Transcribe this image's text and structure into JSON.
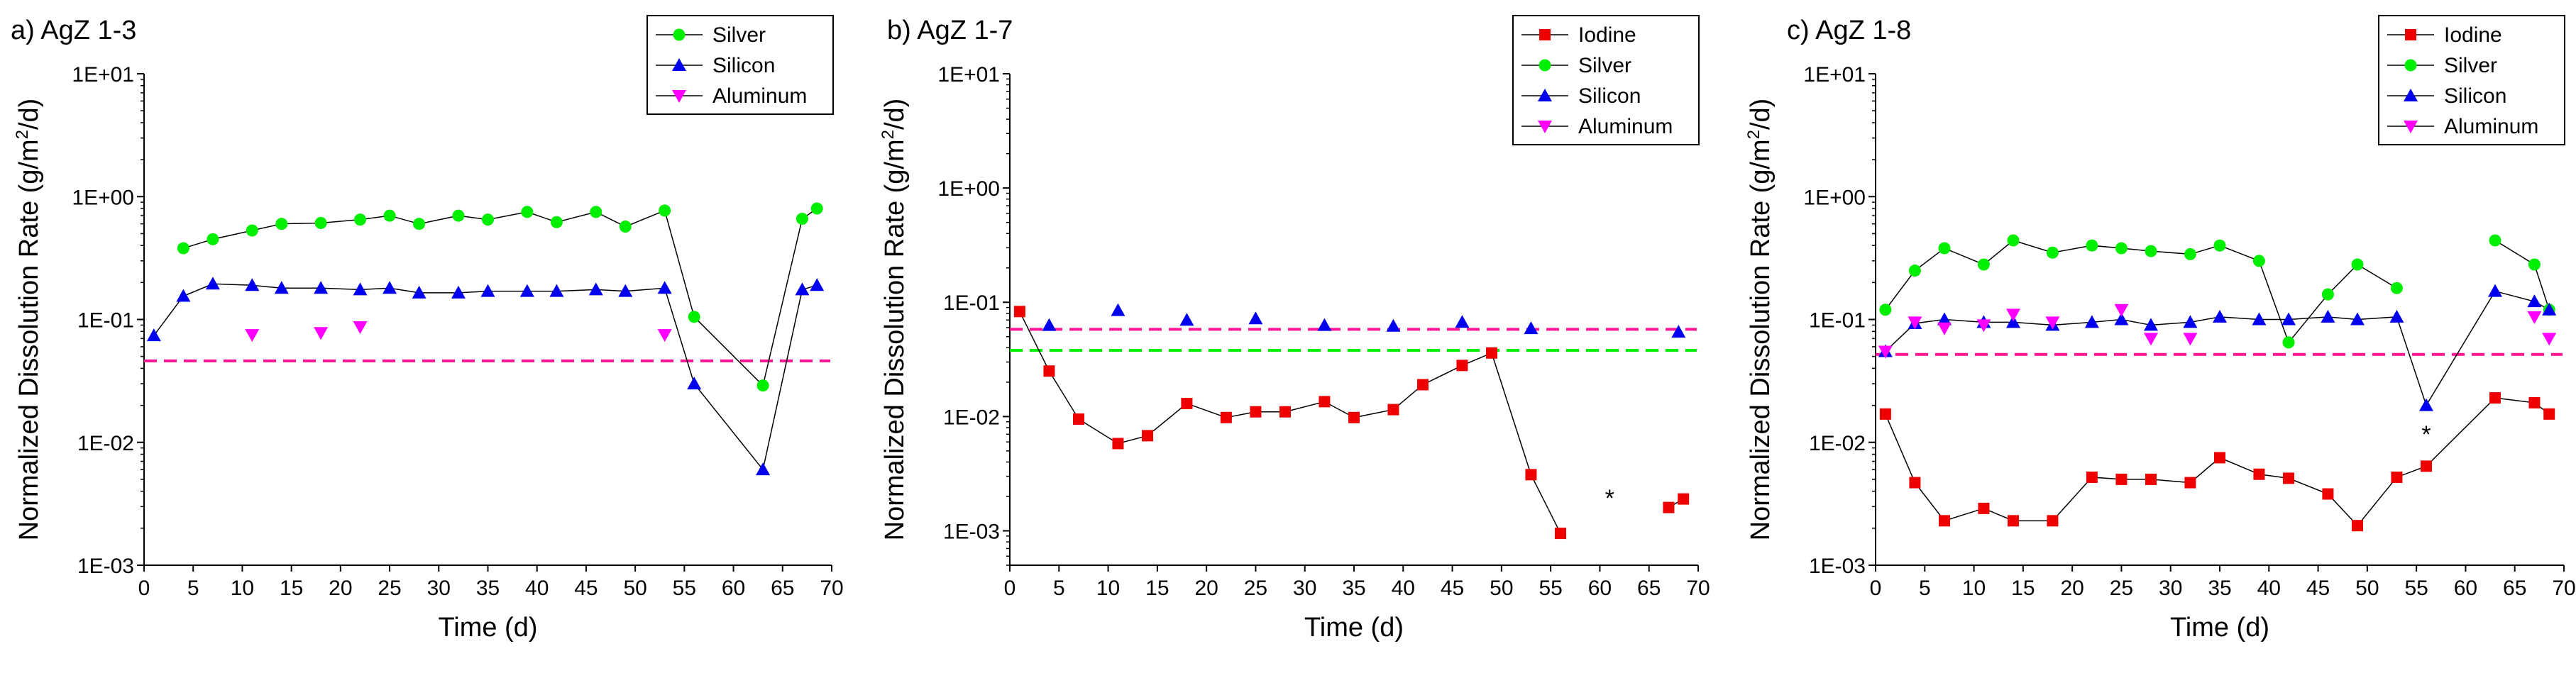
{
  "chart_data": [
    {
      "type": "scatter",
      "title": "a) AgZ 1-3",
      "xlabel": "Time (d)",
      "ylabel_prefix": "Normalized Dissolution Rate (g/m",
      "ylabel_sup": "2",
      "ylabel_suffix": "/d)",
      "xlim": [
        0,
        70
      ],
      "xticks": [
        0,
        5,
        10,
        15,
        20,
        25,
        30,
        35,
        40,
        45,
        50,
        55,
        60,
        65,
        70
      ],
      "ylim": [
        0.001,
        10
      ],
      "yscale": "log",
      "yticks": [
        0.001,
        0.01,
        0.1,
        1,
        10
      ],
      "ytick_labels": [
        "1E-03",
        "1E-02",
        "1E-01",
        "1E+00",
        "1E+01"
      ],
      "legend": [
        "Silver",
        "Silicon",
        "Aluminum"
      ],
      "series": [
        {
          "name": "Silver",
          "color": "#00ee00",
          "marker": "circle",
          "segments": [
            [
              [
                4,
                0.38
              ],
              [
                7,
                0.45
              ],
              [
                11,
                0.53
              ],
              [
                14,
                0.6
              ],
              [
                18,
                0.61
              ],
              [
                22,
                0.65
              ],
              [
                25,
                0.7
              ],
              [
                28,
                0.6
              ],
              [
                32,
                0.7
              ],
              [
                35,
                0.65
              ],
              [
                39,
                0.75
              ],
              [
                42,
                0.62
              ],
              [
                46,
                0.75
              ],
              [
                49,
                0.57
              ],
              [
                53,
                0.77
              ],
              [
                56,
                0.105
              ],
              [
                63,
                0.029
              ],
              [
                67,
                0.66
              ],
              [
                68.5,
                0.8
              ]
            ]
          ]
        },
        {
          "name": "Silicon",
          "color": "#0000ee",
          "marker": "triangle-up",
          "segments": [
            [
              [
                1,
                0.074
              ],
              [
                4,
                0.155
              ],
              [
                7,
                0.195
              ],
              [
                11,
                0.19
              ],
              [
                14,
                0.18
              ],
              [
                18,
                0.18
              ],
              [
                22,
                0.175
              ],
              [
                25,
                0.18
              ],
              [
                28,
                0.165
              ],
              [
                32,
                0.165
              ],
              [
                35,
                0.17
              ],
              [
                39,
                0.17
              ],
              [
                42,
                0.17
              ],
              [
                46,
                0.175
              ],
              [
                49,
                0.17
              ],
              [
                53,
                0.18
              ],
              [
                56,
                0.03
              ],
              [
                63,
                0.006
              ],
              [
                67,
                0.175
              ],
              [
                68.5,
                0.19
              ]
            ]
          ]
        },
        {
          "name": "Aluminum",
          "color": "#ff00ff",
          "marker": "triangle-down",
          "segments": [
            [
              [
                11,
                0.075
              ]
            ],
            [
              [
                18,
                0.078
              ]
            ],
            [
              [
                22,
                0.087
              ]
            ],
            [
              [
                53,
                0.075
              ]
            ]
          ]
        }
      ],
      "reference_lines": [
        {
          "y": 0.046,
          "color": "#ff1493"
        }
      ],
      "annotations": []
    },
    {
      "type": "scatter",
      "title": "b) AgZ 1-7",
      "xlabel": "Time (d)",
      "ylabel_prefix": "Normalized Dissolution Rate (g/m",
      "ylabel_sup": "2",
      "ylabel_suffix": "/d)",
      "xlim": [
        0,
        70
      ],
      "xticks": [
        0,
        5,
        10,
        15,
        20,
        25,
        30,
        35,
        40,
        45,
        50,
        55,
        60,
        65,
        70
      ],
      "ylim": [
        0.0005,
        10
      ],
      "yscale": "log",
      "yticks": [
        0.001,
        0.01,
        0.1,
        1,
        10
      ],
      "ytick_labels": [
        "1E-03",
        "1E-02",
        "1E-01",
        "1E+00",
        "1E+01"
      ],
      "legend": [
        "Iodine",
        "Silver",
        "Silicon",
        "Aluminum"
      ],
      "series": [
        {
          "name": "Iodine",
          "color": "#ee0000",
          "marker": "square",
          "segments": [
            [
              [
                1,
                0.083
              ],
              [
                4,
                0.025
              ],
              [
                7,
                0.0095
              ],
              [
                11,
                0.0058
              ],
              [
                14,
                0.0068
              ],
              [
                18,
                0.013
              ],
              [
                22,
                0.0098
              ],
              [
                25,
                0.011
              ],
              [
                28,
                0.011
              ],
              [
                32,
                0.0135
              ],
              [
                35,
                0.0098
              ],
              [
                39,
                0.0115
              ],
              [
                42,
                0.019
              ],
              [
                46,
                0.028
              ],
              [
                49,
                0.036
              ],
              [
                53,
                0.0031
              ],
              [
                56,
                0.00095
              ]
            ],
            [
              [
                67,
                0.0016
              ],
              [
                68.5,
                0.0019
              ]
            ]
          ]
        },
        {
          "name": "Silver",
          "color": "#00ee00",
          "marker": "circle",
          "segments": []
        },
        {
          "name": "Silicon",
          "color": "#0000ee",
          "marker": "triangle-up",
          "segments": [
            [
              [
                4,
                0.063
              ]
            ],
            [
              [
                11,
                0.085
              ]
            ],
            [
              [
                18,
                0.07
              ]
            ],
            [
              [
                25,
                0.072
              ]
            ],
            [
              [
                32,
                0.063
              ]
            ],
            [
              [
                39,
                0.062
              ]
            ],
            [
              [
                46,
                0.067
              ]
            ],
            [
              [
                53,
                0.059
              ]
            ],
            [
              [
                68,
                0.055
              ]
            ]
          ]
        },
        {
          "name": "Aluminum",
          "color": "#ff00ff",
          "marker": "triangle-down",
          "segments": []
        }
      ],
      "reference_lines": [
        {
          "y": 0.058,
          "color": "#ff1493"
        },
        {
          "y": 0.038,
          "color": "#00ee00"
        }
      ],
      "annotations": [
        {
          "text": "*",
          "x": 61,
          "y": 0.002
        }
      ]
    },
    {
      "type": "scatter",
      "title": "c) AgZ 1-8",
      "xlabel": "Time (d)",
      "ylabel_prefix": "Normalized Dissolution Rate (g/m",
      "ylabel_sup": "2",
      "ylabel_suffix": "/d)",
      "xlim": [
        0,
        70
      ],
      "xticks": [
        0,
        5,
        10,
        15,
        20,
        25,
        30,
        35,
        40,
        45,
        50,
        55,
        60,
        65,
        70
      ],
      "ylim": [
        0.001,
        10
      ],
      "yscale": "log",
      "yticks": [
        0.001,
        0.01,
        0.1,
        1,
        10
      ],
      "ytick_labels": [
        "1E-03",
        "1E-02",
        "1E-01",
        "1E+00",
        "1E+01"
      ],
      "legend": [
        "Iodine",
        "Silver",
        "Silicon",
        "Aluminum"
      ],
      "series": [
        {
          "name": "Iodine",
          "color": "#ee0000",
          "marker": "square",
          "segments": [
            [
              [
                1,
                0.017
              ],
              [
                4,
                0.0047
              ],
              [
                7,
                0.0023
              ],
              [
                11,
                0.0029
              ],
              [
                14,
                0.0023
              ],
              [
                18,
                0.0023
              ],
              [
                22,
                0.0052
              ],
              [
                25,
                0.005
              ],
              [
                28,
                0.005
              ],
              [
                32,
                0.0047
              ],
              [
                35,
                0.0075
              ],
              [
                39,
                0.0055
              ],
              [
                42,
                0.0051
              ],
              [
                46,
                0.0038
              ],
              [
                49,
                0.0021
              ],
              [
                53,
                0.0052
              ],
              [
                56,
                0.0064
              ],
              [
                63,
                0.023
              ],
              [
                67,
                0.021
              ],
              [
                68.5,
                0.017
              ]
            ]
          ]
        },
        {
          "name": "Silver",
          "color": "#00ee00",
          "marker": "circle",
          "segments": [
            [
              [
                1,
                0.12
              ],
              [
                4,
                0.25
              ],
              [
                7,
                0.38
              ],
              [
                11,
                0.28
              ],
              [
                14,
                0.44
              ],
              [
                18,
                0.35
              ],
              [
                22,
                0.4
              ],
              [
                25,
                0.38
              ],
              [
                28,
                0.36
              ],
              [
                32,
                0.34
              ],
              [
                35,
                0.4
              ],
              [
                39,
                0.3
              ],
              [
                42,
                0.065
              ],
              [
                46,
                0.16
              ],
              [
                49,
                0.28
              ],
              [
                53,
                0.18
              ]
            ],
            [
              [
                63,
                0.44
              ],
              [
                67,
                0.28
              ],
              [
                68.5,
                0.12
              ]
            ]
          ]
        },
        {
          "name": "Silicon",
          "color": "#0000ee",
          "marker": "triangle-up",
          "segments": [
            [
              [
                1,
                0.055
              ],
              [
                4,
                0.093
              ],
              [
                7,
                0.1
              ],
              [
                11,
                0.095
              ],
              [
                14,
                0.095
              ],
              [
                18,
                0.09
              ],
              [
                22,
                0.095
              ],
              [
                25,
                0.1
              ],
              [
                28,
                0.09
              ],
              [
                32,
                0.095
              ],
              [
                35,
                0.105
              ],
              [
                39,
                0.1
              ],
              [
                42,
                0.1
              ],
              [
                46,
                0.105
              ],
              [
                49,
                0.1
              ],
              [
                53,
                0.105
              ],
              [
                56,
                0.02
              ],
              [
                63,
                0.17
              ],
              [
                67,
                0.14
              ],
              [
                68.5,
                0.12
              ]
            ]
          ]
        },
        {
          "name": "Aluminum",
          "color": "#ff00ff",
          "marker": "triangle-down",
          "segments": [
            [
              [
                1,
                0.055
              ]
            ],
            [
              [
                4,
                0.095
              ]
            ],
            [
              [
                7,
                0.085
              ]
            ],
            [
              [
                11,
                0.09
              ]
            ],
            [
              [
                14,
                0.11
              ]
            ],
            [
              [
                18,
                0.095
              ]
            ],
            [
              [
                25,
                0.12
              ]
            ],
            [
              [
                28,
                0.07
              ]
            ],
            [
              [
                32,
                0.07
              ]
            ],
            [
              [
                67,
                0.105
              ]
            ],
            [
              [
                68.5,
                0.07
              ]
            ]
          ]
        }
      ],
      "reference_lines": [
        {
          "y": 0.052,
          "color": "#ff1493"
        }
      ],
      "annotations": [
        {
          "text": "*",
          "x": 56,
          "y": 0.012
        }
      ]
    }
  ]
}
